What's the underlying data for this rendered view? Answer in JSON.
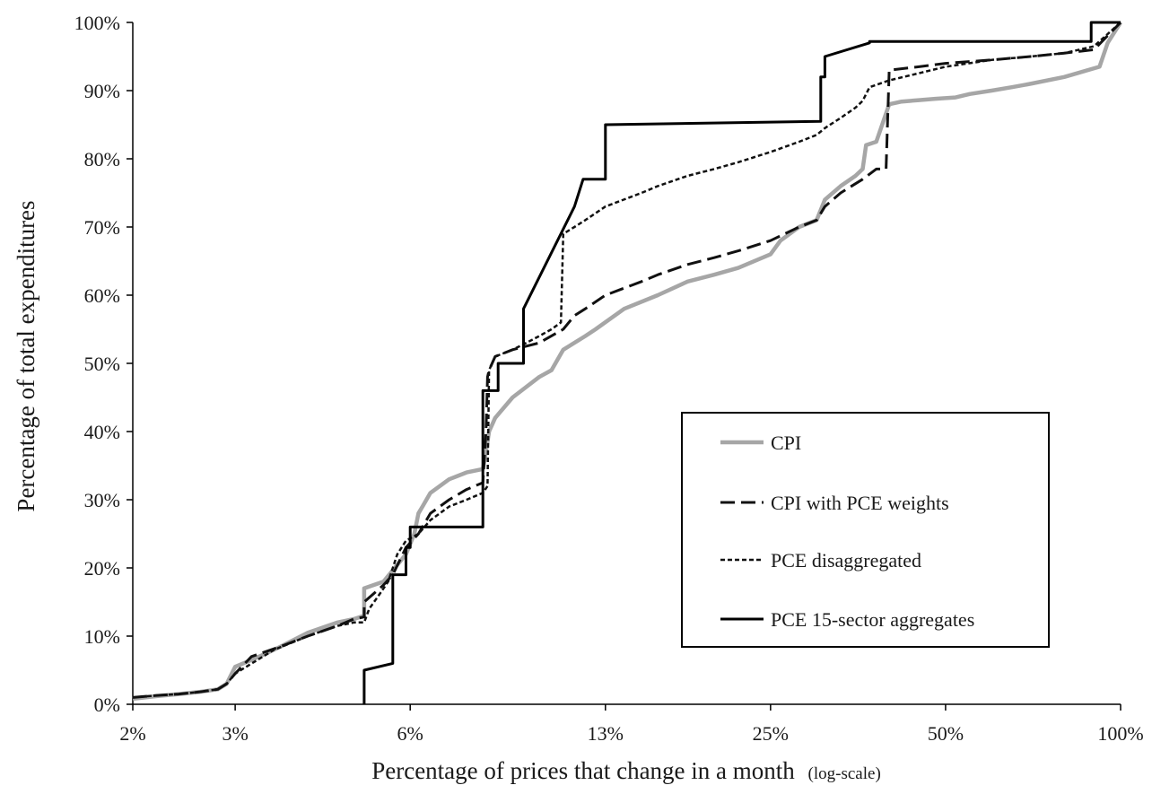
{
  "chart_data": {
    "type": "line",
    "xlabel": "Percentage of prices that change in a month",
    "xlabel_note": "(log-scale)",
    "ylabel": "Percentage of total expenditures",
    "x_scale": "log",
    "x_ticks": [
      {
        "value": 2,
        "label": "2%"
      },
      {
        "value": 3,
        "label": "3%"
      },
      {
        "value": 6,
        "label": "6%"
      },
      {
        "value": 13,
        "label": "13%"
      },
      {
        "value": 25,
        "label": "25%"
      },
      {
        "value": 50,
        "label": "50%"
      },
      {
        "value": 100,
        "label": "100%"
      }
    ],
    "y_ticks": [
      {
        "value": 0,
        "label": "0%"
      },
      {
        "value": 10,
        "label": "10%"
      },
      {
        "value": 20,
        "label": "20%"
      },
      {
        "value": 30,
        "label": "30%"
      },
      {
        "value": 40,
        "label": "40%"
      },
      {
        "value": 50,
        "label": "50%"
      },
      {
        "value": 60,
        "label": "60%"
      },
      {
        "value": 70,
        "label": "70%"
      },
      {
        "value": 80,
        "label": "80%"
      },
      {
        "value": 90,
        "label": "90%"
      },
      {
        "value": 100,
        "label": "100%"
      }
    ],
    "xlim": [
      2,
      100
    ],
    "ylim": [
      0,
      100
    ],
    "grid": false,
    "legend_position": "lower-right",
    "series": [
      {
        "name": "CPI",
        "color": "#a6a6a6",
        "style": "solid-thick",
        "x": [
          2.0,
          2.2,
          2.4,
          2.6,
          2.8,
          2.9,
          3.0,
          3.2,
          3.4,
          3.6,
          4.0,
          4.5,
          4.8,
          5.0,
          5.0,
          5.4,
          5.9,
          6.1,
          6.2,
          6.3,
          6.5,
          7.0,
          7.5,
          8.0,
          8.1,
          8.2,
          8.4,
          9.0,
          10.0,
          10.5,
          11.0,
          12.0,
          12.5,
          14.0,
          16.0,
          18.0,
          20.0,
          22.0,
          25.0,
          26.0,
          28.0,
          30.0,
          31.0,
          33.0,
          35.0,
          36.0,
          36.5,
          38.0,
          40.0,
          41.0,
          42.0,
          45.0,
          48.0,
          52.0,
          55.0,
          60.0,
          65.0,
          70.0,
          80.0,
          92.0,
          95.0,
          100.0
        ],
        "y": [
          0.8,
          1.2,
          1.5,
          1.8,
          2.2,
          3.0,
          5.5,
          6.5,
          7.5,
          8.5,
          10.5,
          12.0,
          12.5,
          13.0,
          17.0,
          18.0,
          22.0,
          25.0,
          28.0,
          29.0,
          31.0,
          33.0,
          34.0,
          34.5,
          37.0,
          40.0,
          42.0,
          45.0,
          48.0,
          49.0,
          52.0,
          54.0,
          55.0,
          58.0,
          60.0,
          62.0,
          63.0,
          64.0,
          66.0,
          68.0,
          70.0,
          71.0,
          74.0,
          76.0,
          77.5,
          78.5,
          82.0,
          82.5,
          88.0,
          88.2,
          88.4,
          88.6,
          88.8,
          89.0,
          89.5,
          90.0,
          90.5,
          91.0,
          92.0,
          93.5,
          97.0,
          100.0
        ]
      },
      {
        "name": "CPI with PCE weights",
        "color": "#111111",
        "style": "long-dash",
        "x": [
          2.0,
          2.2,
          2.4,
          2.6,
          2.8,
          2.9,
          3.0,
          3.2,
          3.6,
          4.0,
          4.5,
          4.8,
          5.0,
          5.0,
          5.4,
          5.6,
          5.9,
          6.2,
          6.5,
          7.0,
          7.5,
          8.0,
          8.1,
          8.15,
          8.2,
          8.4,
          9.0,
          10.0,
          11.0,
          11.5,
          12.0,
          13.0,
          15.0,
          16.0,
          18.0,
          20.0,
          22.0,
          25.0,
          28.0,
          30.0,
          31.0,
          33.0,
          36.0,
          38.0,
          39.5,
          40.0,
          45.0,
          50.0,
          60.0,
          70.0,
          80.0,
          90.0,
          100.0
        ],
        "y": [
          1.0,
          1.3,
          1.5,
          1.8,
          2.2,
          3.0,
          4.5,
          7.0,
          8.5,
          10.0,
          11.5,
          12.5,
          12.8,
          15.0,
          17.5,
          19.0,
          23.0,
          25.0,
          28.0,
          30.0,
          31.5,
          32.5,
          40.0,
          48.0,
          49.0,
          51.0,
          52.0,
          53.0,
          55.0,
          57.0,
          58.0,
          60.0,
          62.0,
          63.0,
          64.5,
          65.5,
          66.5,
          68.0,
          70.0,
          71.0,
          73.0,
          75.0,
          77.0,
          78.5,
          78.5,
          93.0,
          93.5,
          94.0,
          94.5,
          95.0,
          95.5,
          96.0,
          100.0
        ]
      },
      {
        "name": "PCE disaggregated",
        "color": "#111111",
        "style": "short-dash",
        "x": [
          2.0,
          2.2,
          2.4,
          2.6,
          2.8,
          2.9,
          3.0,
          3.5,
          4.0,
          4.5,
          4.8,
          5.0,
          5.1,
          5.3,
          5.5,
          5.6,
          5.7,
          5.8,
          5.9,
          6.2,
          6.5,
          7.0,
          7.5,
          8.0,
          8.15,
          8.2,
          8.4,
          9.0,
          9.5,
          10.0,
          10.5,
          10.9,
          11.0,
          11.5,
          12.0,
          13.0,
          15.0,
          16.0,
          18.0,
          20.0,
          22.0,
          25.0,
          28.0,
          30.0,
          31.0,
          33.0,
          35.0,
          36.0,
          37.0,
          40.0,
          50.0,
          60.0,
          70.0,
          80.0,
          90.0,
          100.0
        ],
        "y": [
          1.0,
          1.3,
          1.5,
          1.8,
          2.2,
          3.0,
          4.5,
          8.0,
          10.0,
          11.5,
          12.0,
          12.0,
          14.0,
          16.0,
          18.0,
          20.0,
          22.0,
          23.0,
          24.0,
          25.0,
          27.0,
          29.0,
          30.0,
          31.0,
          32.0,
          49.0,
          51.0,
          52.0,
          53.0,
          54.0,
          55.0,
          56.0,
          69.0,
          70.0,
          71.0,
          73.0,
          75.0,
          76.0,
          77.5,
          78.5,
          79.5,
          81.0,
          82.5,
          83.5,
          84.5,
          86.0,
          87.5,
          88.5,
          90.5,
          91.5,
          93.5,
          94.5,
          95.0,
          95.5,
          96.5,
          100.0
        ]
      },
      {
        "name": "PCE 15-sector aggregates",
        "color": "#000000",
        "style": "solid",
        "x": [
          5.0,
          5.0,
          5.6,
          5.6,
          5.9,
          5.9,
          6.0,
          6.0,
          8.0,
          8.0,
          8.5,
          8.5,
          9.4,
          9.4,
          11.5,
          11.5,
          11.9,
          11.9,
          13.0,
          13.0,
          30.5,
          30.5,
          31.0,
          31.0,
          37.0,
          37.0,
          89.0,
          89.0,
          100.0
        ],
        "y": [
          0.0,
          5.0,
          6.0,
          19.0,
          19.0,
          23.0,
          23.0,
          26.0,
          26.0,
          46.0,
          46.0,
          50.0,
          50.0,
          58.0,
          73.0,
          73.0,
          77.0,
          77.0,
          77.0,
          85.0,
          85.5,
          92.0,
          92.0,
          95.0,
          97.0,
          97.2,
          97.2,
          100.0,
          100.0
        ]
      }
    ]
  }
}
